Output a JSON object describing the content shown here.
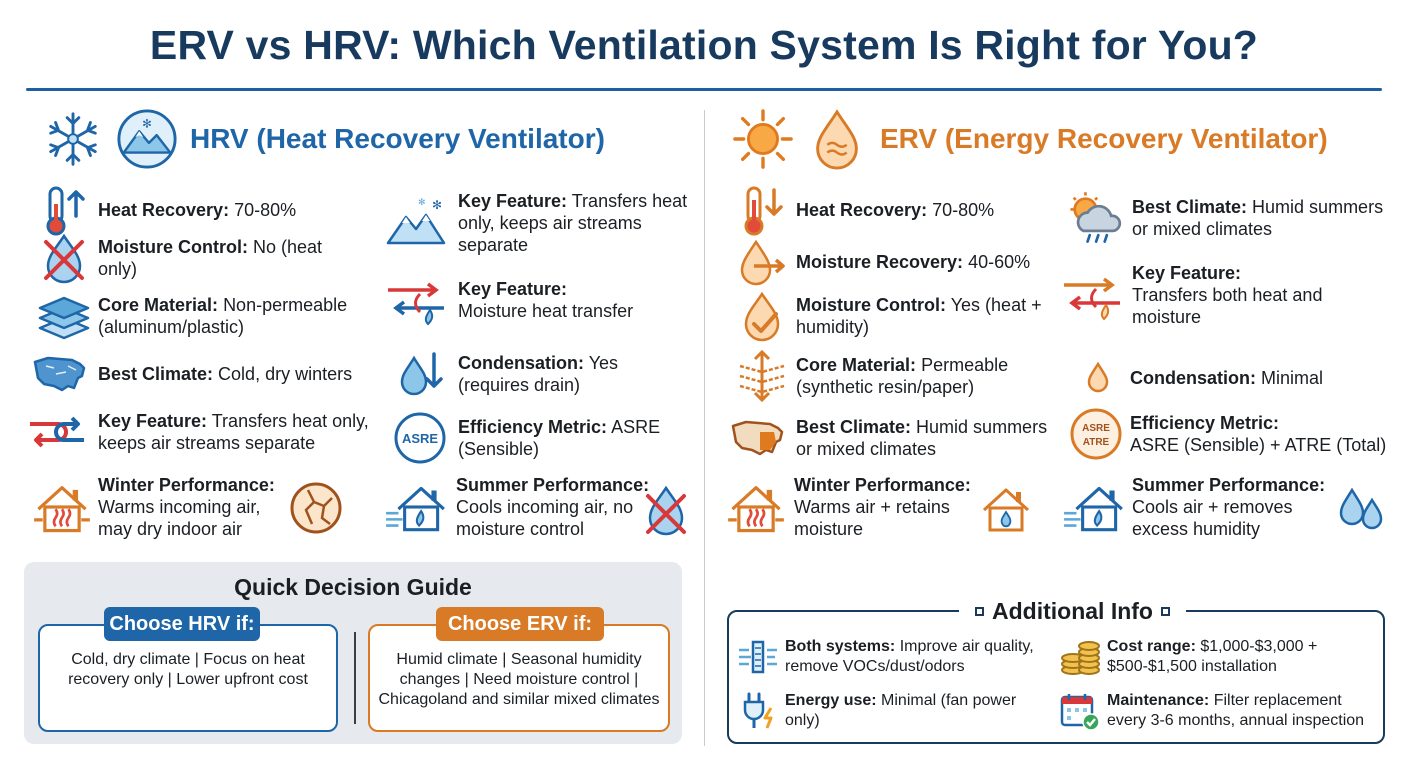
{
  "title": "ERV vs HRV: Which Ventilation System Is Right for You?",
  "colors": {
    "hrv": "#1f66a8",
    "erv": "#d97a26",
    "navy": "#173a5e"
  },
  "hrv": {
    "heading": "HRV (Heat Recovery Ventilator)",
    "items": [
      {
        "icon": "thermometer-up-icon",
        "label": "Heat Recovery:",
        "value": "70-80%"
      },
      {
        "icon": "crossed-drop-icon",
        "label": "Moisture Control:",
        "value": "No (heat only)"
      },
      {
        "icon": "layers-icon",
        "label": "Core Material:",
        "value": "Non-permeable (aluminum/plastic)"
      },
      {
        "icon": "us-map-icon",
        "label": "Best Climate:",
        "value": "Cold, dry winters"
      },
      {
        "icon": "airflow-arrows-icon",
        "label": "Key Feature:",
        "value": "Transfers heat only, keeps air streams separate"
      },
      {
        "icon": "warm-house-icon",
        "label": "Winter Performance:",
        "value": "Warms incoming air, may dry indoor air"
      },
      {
        "icon": "snowy-mountain-icon",
        "label": "Key Feature:",
        "value": "Transfers heat only, keeps air streams separate"
      },
      {
        "icon": "transfer-arrows-icon",
        "label": "Key Feature:",
        "value": "Moisture heat transfer"
      },
      {
        "icon": "drop-down-arrow-icon",
        "label": "Condensation:",
        "value": "Yes (requires drain)"
      },
      {
        "icon": "asre-badge-icon",
        "label": "Efficiency Metric:",
        "value": "ASRE (Sensible)"
      },
      {
        "icon": "cool-house-icon",
        "label": "Summer Performance:",
        "value": "Cools incoming air, no moisture control"
      }
    ]
  },
  "erv": {
    "heading": "ERV (Energy Recovery Ventilator)",
    "items": [
      {
        "icon": "thermometer-down-icon",
        "label": "Heat Recovery:",
        "value": "70-80%"
      },
      {
        "icon": "drop-arrow-icon",
        "label": "Moisture Recovery:",
        "value": "40-60%"
      },
      {
        "icon": "drop-check-icon",
        "label": "Moisture Control:",
        "value": "Yes (heat + humidity)"
      },
      {
        "icon": "permeable-core-icon",
        "label": "Core Material:",
        "value": "Permeable (synthetic resin/paper)"
      },
      {
        "icon": "us-map-icon",
        "label": "Best Climate:",
        "value": "Humid summers or mixed climates"
      },
      {
        "icon": "warm-house-icon",
        "label": "Winter Performance:",
        "value": "Warms air + retains moisture"
      },
      {
        "icon": "sun-cloud-rain-icon",
        "label": "Best Climate:",
        "value": "Humid summers or mixed climates"
      },
      {
        "icon": "transfer-arrows-icon",
        "label": "Key Feature:",
        "value": "Transfers both heat and moisture"
      },
      {
        "icon": "small-drop-icon",
        "label": "Condensation:",
        "value": "Minimal"
      },
      {
        "icon": "asre-atre-badge-icon",
        "label": "Efficiency Metric:",
        "value": "ASRE (Sensible) + ATRE (Total)"
      },
      {
        "icon": "cool-house-icon",
        "label": "Summer Performance:",
        "value": "Cools air + removes excess humidity"
      }
    ]
  },
  "guide": {
    "title": "Quick Decision Guide",
    "hrv_tag": "Choose HRV if:",
    "hrv_text": "Cold, dry climate | Focus on heat recovery only | Lower upfront cost",
    "erv_tag": "Choose ERV if:",
    "erv_text": "Humid climate | Seasonal humidity changes | Need moisture control | Chicagoland and similar mixed climates"
  },
  "additional": {
    "title": "Additional Info",
    "items": [
      {
        "icon": "air-filter-icon",
        "label": "Both systems:",
        "value": "Improve air quality, remove VOCs/dust/odors"
      },
      {
        "icon": "coins-icon",
        "label": "Cost range:",
        "value": "$1,000-$3,000 + $500-$1,500 installation"
      },
      {
        "icon": "plug-bolt-icon",
        "label": "Energy use:",
        "value": "Minimal (fan power only)"
      },
      {
        "icon": "calendar-check-icon",
        "label": "Maintenance:",
        "value": "Filter replacement every 3-6 months, annual inspection"
      }
    ]
  },
  "badges": {
    "asre": "ASRE",
    "atre": "ATRE"
  }
}
